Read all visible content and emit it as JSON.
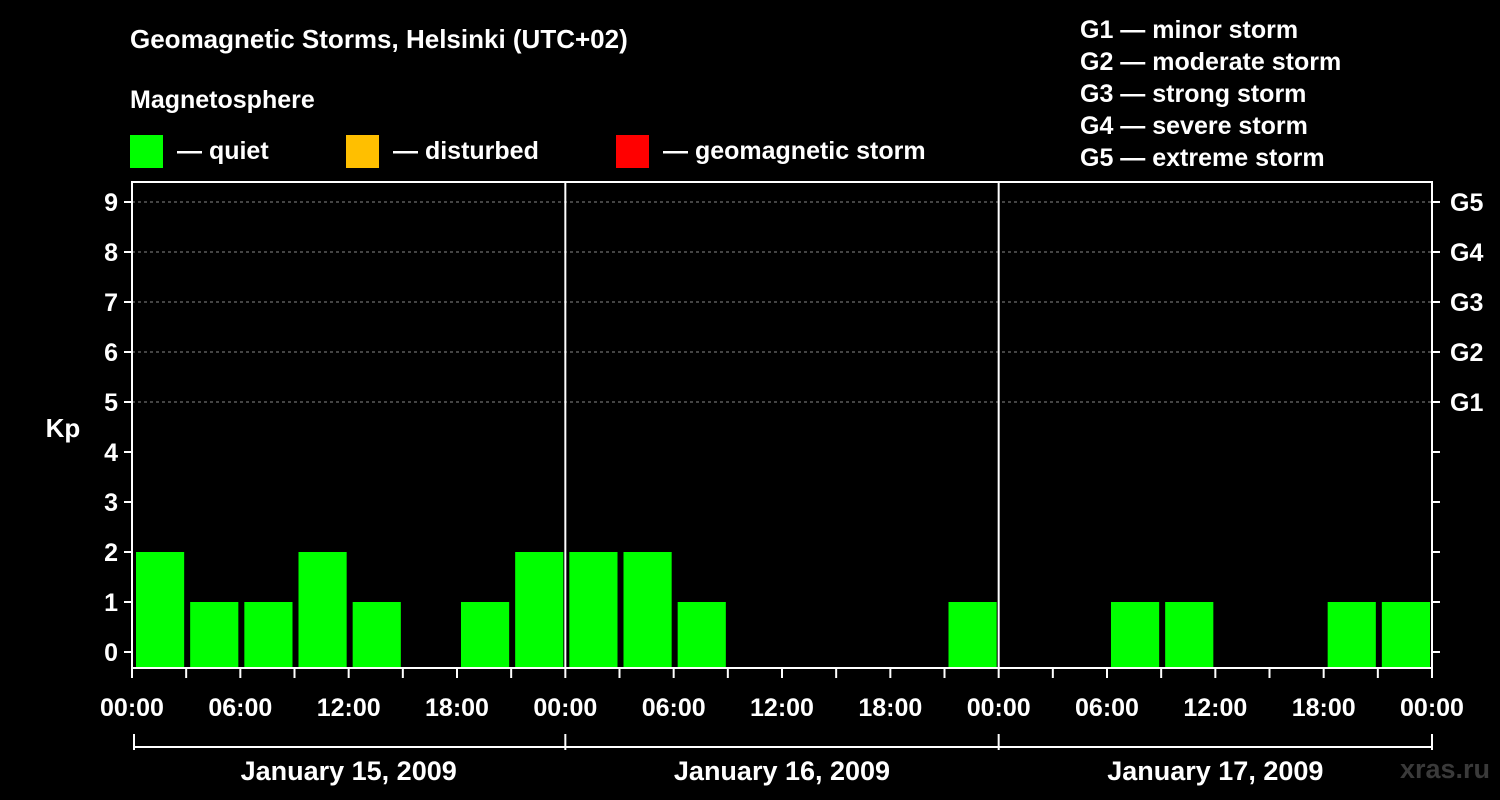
{
  "title": "Geomagnetic Storms, Helsinki (UTC+02)",
  "subtitle": "Magnetosphere",
  "legend": [
    {
      "label": "— quiet",
      "color": "#00ff00"
    },
    {
      "label": "— disturbed",
      "color": "#ffbf00"
    },
    {
      "label": "— geomagnetic storm",
      "color": "#ff0000"
    }
  ],
  "storm_scale": [
    "G1 — minor storm",
    "G2 — moderate storm",
    "G3 — strong storm",
    "G4 — severe storm",
    "G5 — extreme storm"
  ],
  "watermark": "xras.ru",
  "chart_data": {
    "type": "bar",
    "ylabel": "Kp",
    "ylim": [
      0,
      9
    ],
    "y_ticks": [
      "0",
      "1",
      "2",
      "3",
      "4",
      "5",
      "6",
      "7",
      "8",
      "9"
    ],
    "right_axis_labels": [
      {
        "kp": 5,
        "label": "G1"
      },
      {
        "kp": 6,
        "label": "G2"
      },
      {
        "kp": 7,
        "label": "G3"
      },
      {
        "kp": 8,
        "label": "G4"
      },
      {
        "kp": 9,
        "label": "G5"
      }
    ],
    "x_tick_labels": [
      "00:00",
      "06:00",
      "12:00",
      "18:00",
      "00:00",
      "06:00",
      "12:00",
      "18:00",
      "00:00",
      "06:00",
      "12:00",
      "18:00",
      "00:00"
    ],
    "days": [
      "January 15, 2009",
      "January 16, 2009",
      "January 17, 2009"
    ],
    "interval_hours": 3,
    "grid": "dashed horizontal at Kp 5–9",
    "series": [
      {
        "values": [
          2,
          1,
          1,
          2,
          1,
          0,
          1,
          2,
          2,
          2,
          1,
          0,
          0,
          0,
          0,
          1,
          0,
          0,
          1,
          1,
          0,
          0,
          1,
          1
        ],
        "colors": [
          "#00ff00",
          "#00ff00",
          "#00ff00",
          "#00ff00",
          "#00ff00",
          "#00ff00",
          "#00ff00",
          "#00ff00",
          "#00ff00",
          "#00ff00",
          "#00ff00",
          "#00ff00",
          "#00ff00",
          "#00ff00",
          "#00ff00",
          "#00ff00",
          "#00ff00",
          "#00ff00",
          "#00ff00",
          "#00ff00",
          "#00ff00",
          "#00ff00",
          "#00ff00",
          "#00ff00"
        ]
      }
    ],
    "partial_last_bar": {
      "value": 1,
      "color": "#00ff00"
    }
  }
}
